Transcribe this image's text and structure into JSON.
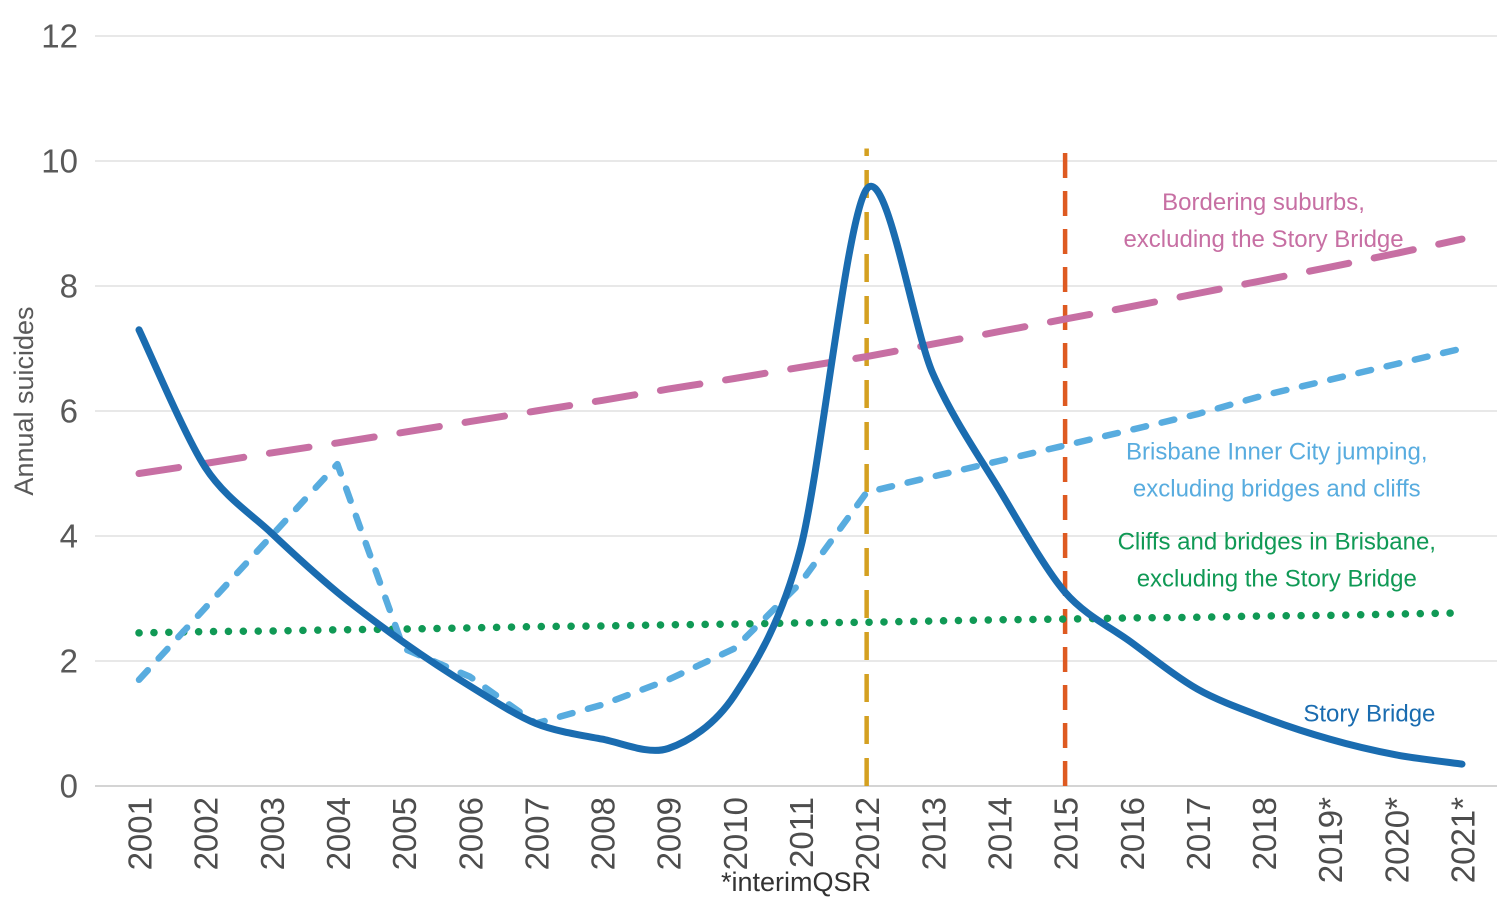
{
  "chart_data": {
    "type": "line",
    "title": "",
    "ylabel": "Annual suicides",
    "footnote": "*interimQSR",
    "ylim": [
      0,
      12
    ],
    "yticks": [
      0,
      2,
      4,
      6,
      8,
      10,
      12
    ],
    "grid": "horizontal",
    "legend_position": "none (direct line labels)",
    "categories": [
      "2001",
      "2002",
      "2003",
      "2004",
      "2005",
      "2006",
      "2007",
      "2008",
      "2009",
      "2010",
      "2011",
      "2012",
      "2013",
      "2014",
      "2015",
      "2016",
      "2017",
      "2018",
      "2019*",
      "2020*",
      "2021*"
    ],
    "series": [
      {
        "id": "story-bridge",
        "name": "Story Bridge",
        "color": "#1A6CB0",
        "style": "solid",
        "smooth": true,
        "values": [
          7.3,
          5.1,
          4.05,
          3.1,
          2.3,
          1.6,
          1.0,
          0.75,
          0.6,
          1.45,
          3.8,
          9.55,
          6.6,
          4.75,
          3.1,
          2.3,
          1.55,
          1.1,
          0.75,
          0.5,
          0.35
        ]
      },
      {
        "id": "brisbane-inner-city",
        "name": "Brisbane Inner City jumping, excluding bridges and cliffs",
        "color": "#58ACDF",
        "style": "dashed",
        "smooth": false,
        "values": [
          1.7,
          2.85,
          4.0,
          5.15,
          2.2,
          1.75,
          1.0,
          1.3,
          1.7,
          2.2,
          3.25,
          4.7,
          4.95,
          5.2,
          5.45,
          5.7,
          5.95,
          6.25,
          6.5,
          6.75,
          7.0
        ]
      },
      {
        "id": "bordering-suburbs",
        "name": "Bordering suburbs, excluding the Story Bridge",
        "color": "#C76FA3",
        "style": "long-dash",
        "smooth": false,
        "values": [
          5.0,
          5.16,
          5.33,
          5.49,
          5.66,
          5.83,
          6.0,
          6.17,
          6.35,
          6.52,
          6.7,
          6.87,
          7.07,
          7.27,
          7.47,
          7.67,
          7.88,
          8.09,
          8.3,
          8.52,
          8.75
        ]
      },
      {
        "id": "cliffs-and-bridges",
        "name": "Cliffs and bridges in Brisbane, excluding the Story Bridge",
        "color": "#109955",
        "style": "dotted",
        "smooth": false,
        "values": [
          2.45,
          2.47,
          2.48,
          2.5,
          2.51,
          2.53,
          2.55,
          2.56,
          2.58,
          2.59,
          2.61,
          2.62,
          2.64,
          2.66,
          2.67,
          2.69,
          2.7,
          2.72,
          2.73,
          2.75,
          2.77
        ]
      }
    ],
    "vertical_markers": [
      {
        "id": "marker-2012",
        "category": "2012",
        "color": "#D4A021",
        "y_top": 10.2
      },
      {
        "id": "marker-2015",
        "category": "2015",
        "color": "#DE5A21",
        "y_top": 10.2
      }
    ],
    "annotations": [
      {
        "id": "label-bordering-suburbs",
        "lines": [
          "Bordering suburbs,",
          "excluding the Story Bridge"
        ],
        "color": "#C76FA3",
        "x_index": 17.0,
        "y": 9.05
      },
      {
        "id": "label-brisbane-inner-city",
        "lines": [
          "Brisbane Inner City jumping,",
          "excluding bridges and cliffs"
        ],
        "color": "#58ACDF",
        "x_index": 17.2,
        "y": 5.06
      },
      {
        "id": "label-cliffs-and-bridges",
        "lines": [
          "Cliffs and bridges in Brisbane,",
          "excluding the Story Bridge"
        ],
        "color": "#109955",
        "x_index": 17.2,
        "y": 3.62
      },
      {
        "id": "label-story-bridge",
        "lines": [
          "Story Bridge"
        ],
        "color": "#1A6CB0",
        "x_index": 18.6,
        "y": 1.15
      }
    ],
    "colors": {
      "gridline": "#D9D9D9",
      "axis_line": "#C6C6C6",
      "x_tick_label": "#4D4D4D",
      "y_tick_label": "#595959",
      "y_axis_title": "#595959",
      "footnote": "#333333",
      "background": "#FFFFFF"
    }
  }
}
